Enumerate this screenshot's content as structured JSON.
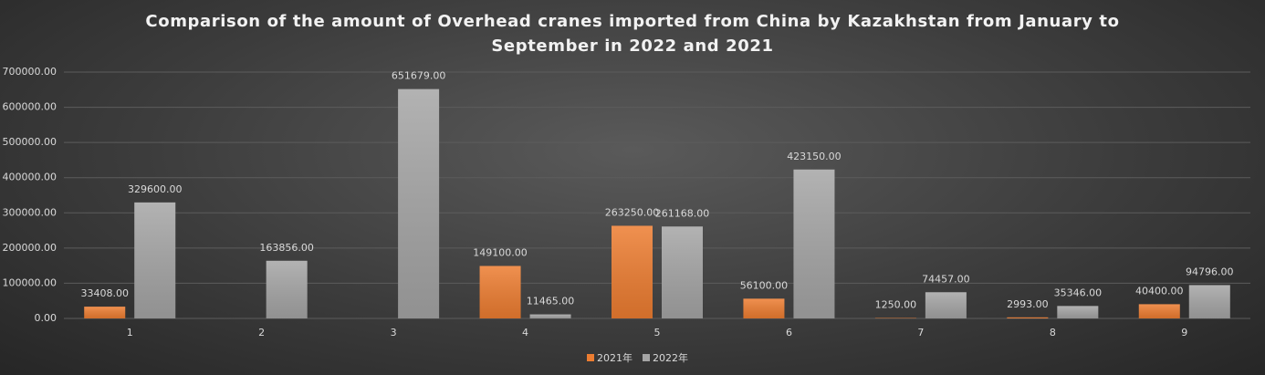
{
  "chart_data": {
    "type": "bar",
    "title": "Comparison of the amount of Overhead cranes imported from China by Kazakhstan from January to September in 2022 and 2021",
    "categories": [
      "1",
      "2",
      "3",
      "4",
      "5",
      "6",
      "7",
      "8",
      "9"
    ],
    "series": [
      {
        "name": "2021年",
        "color": "#ed7d31",
        "values": [
          33408,
          null,
          null,
          149100,
          263250,
          56100,
          1250,
          2993,
          40400
        ],
        "value_labels": [
          "33408.00",
          null,
          null,
          "149100.00",
          "263250.00",
          "56100.00",
          "1250.00",
          "2993.00",
          "40400.00"
        ]
      },
      {
        "name": "2022年",
        "color": "#a5a5a5",
        "values": [
          329600,
          163856,
          651679,
          11465,
          261168,
          423150,
          74457,
          35346,
          94796
        ],
        "value_labels": [
          "329600.00",
          "163856.00",
          "651679.00",
          "11465.00",
          "261168.00",
          "423150.00",
          "74457.00",
          "35346.00",
          "94796.00"
        ]
      }
    ],
    "ylim": [
      0,
      700000
    ],
    "yticks": [
      {
        "value": 0,
        "label": "0.00"
      },
      {
        "value": 100000,
        "label": "100000.00"
      },
      {
        "value": 200000,
        "label": "200000.00"
      },
      {
        "value": 300000,
        "label": "300000.00"
      },
      {
        "value": 400000,
        "label": "400000.00"
      },
      {
        "value": 500000,
        "label": "500000.00"
      },
      {
        "value": 600000,
        "label": "600000.00"
      },
      {
        "value": 700000,
        "label": "700000.00"
      }
    ],
    "grid": true,
    "legend": "bottom"
  }
}
